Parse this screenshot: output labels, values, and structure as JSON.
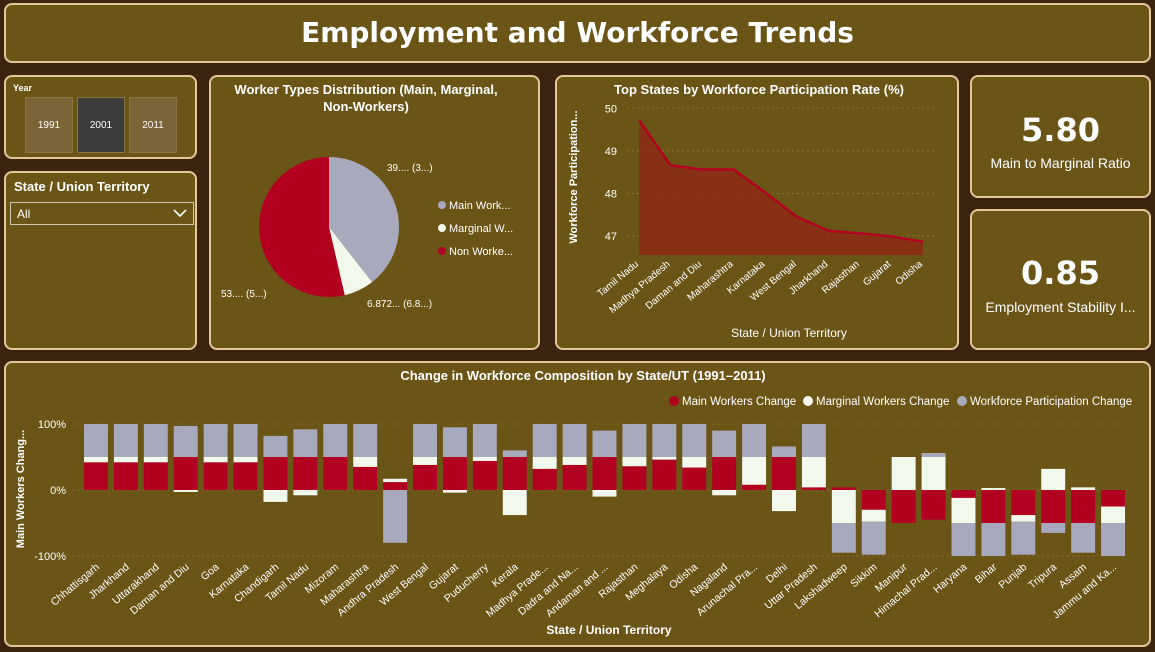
{
  "dashboard": {
    "title": "Employment and Workforce Trends"
  },
  "year_slicer": {
    "label": "Year",
    "options": [
      "1991",
      "2001",
      "2011"
    ],
    "selected": "2001"
  },
  "state_slicer": {
    "label": "State / Union Territory",
    "value": "All",
    "chevron_icon": "chevron-down-icon"
  },
  "kpis": [
    {
      "value": "5.80",
      "label": "Main to Marginal Ratio"
    },
    {
      "value": "0.85",
      "label": "Employment Stability I..."
    }
  ],
  "colors": {
    "main": "#b30021",
    "marginal": "#f3f8ec",
    "nonworkers": "#a9a9bd",
    "panel": "#6a5517",
    "border": "#e6c79a",
    "background": "#3a2410"
  },
  "chart_data": [
    {
      "type": "pie",
      "title": "Worker Types Distribution (Main, Marginal, Non-Workers)",
      "categories": [
        "Main Work...",
        "Marginal W...",
        "Non Worke..."
      ],
      "values": [
        39.0,
        6.872,
        53.0
      ],
      "data_labels": [
        "39.... (3...)",
        "6.872... (6.8...)",
        "53.... (5...)"
      ],
      "colors": [
        "#a9a9bd",
        "#f3f8ec",
        "#b30021"
      ],
      "legend": "right"
    },
    {
      "type": "area",
      "title": "Top States by Workforce Participation Rate (%)",
      "xlabel": "State / Union Territory",
      "ylabel": "Workforce Participation...",
      "categories": [
        "Tamil Nadu",
        "Madhya Pradesh",
        "Daman and Diu",
        "Maharashtra",
        "Karnataka",
        "West Bengal",
        "Jharkhand",
        "Rajasthan",
        "Gujarat",
        "Odisha"
      ],
      "values": [
        49.72,
        48.66,
        48.56,
        48.56,
        48.02,
        47.45,
        47.12,
        47.06,
        46.99,
        46.86
      ],
      "yticks": [
        "47",
        "48",
        "49",
        "50"
      ],
      "ylim": [
        46.55,
        50.1
      ],
      "color": "#b30021"
    },
    {
      "type": "bar",
      "title": "Change in Workforce Composition by State/UT (1991–2011)",
      "xlabel": "State / Union Territory",
      "ylabel": "Main Workers Chang...",
      "yticks": [
        "100%",
        "0%",
        "-100%"
      ],
      "ylim": [
        -1.0,
        1.0
      ],
      "legend": "top-right",
      "categories": [
        "Chhattisgarh",
        "Jharkhand",
        "Uttarakhand",
        "Daman and Diu",
        "Goa",
        "Karnataka",
        "Chandigarh",
        "Tamil Nadu",
        "Mizoram",
        "Maharashtra",
        "Andhra Pradesh",
        "West Bengal",
        "Gujarat",
        "Puducherry",
        "Kerala",
        "Madhya Prade...",
        "Dadra and Na...",
        "Andaman and ...",
        "Rajasthan",
        "Meghalaya",
        "Odisha",
        "Nagaland",
        "Arunachal Pra...",
        "Delhi",
        "Uttar Pradesh",
        "Lakshadweep",
        "Sikkim",
        "Manipur",
        "Himachal Prad...",
        "Haryana",
        "Bihar",
        "Punjab",
        "Tripura",
        "Assam",
        "Jammu and Ka..."
      ],
      "series": [
        {
          "name": "Main Workers Change",
          "color": "#b30021",
          "values": [
            0.42,
            0.42,
            0.42,
            0.5,
            0.42,
            0.42,
            0.5,
            0.5,
            0.5,
            0.35,
            0.12,
            0.38,
            0.5,
            0.44,
            0.5,
            0.32,
            0.38,
            0.5,
            0.36,
            0.46,
            0.34,
            0.5,
            0.08,
            0.5,
            0.04,
            0.04,
            -0.3,
            -0.5,
            -0.45,
            -0.12,
            -0.5,
            -0.38,
            -0.5,
            -0.5,
            -0.25
          ]
        },
        {
          "name": "Marginal Workers Change",
          "color": "#f3f8ec",
          "values": [
            0.08,
            0.08,
            0.08,
            -0.03,
            0.08,
            0.08,
            -0.18,
            -0.08,
            0.0,
            0.15,
            0.05,
            0.12,
            -0.04,
            0.06,
            -0.38,
            0.18,
            0.12,
            -0.1,
            0.14,
            0.04,
            0.16,
            -0.08,
            0.42,
            -0.32,
            0.46,
            -0.5,
            -0.18,
            0.5,
            0.5,
            -0.38,
            0.03,
            -0.1,
            0.32,
            0.04,
            -0.25
          ]
        },
        {
          "name": "Workforce Participation Change",
          "color": "#a9a9bd",
          "values": [
            0.5,
            0.5,
            0.5,
            0.47,
            0.5,
            0.5,
            0.32,
            0.42,
            0.5,
            0.5,
            -0.8,
            0.5,
            0.45,
            0.5,
            0.1,
            0.5,
            0.5,
            0.4,
            0.5,
            0.5,
            0.5,
            0.4,
            0.5,
            0.16,
            0.5,
            -0.45,
            -0.5,
            0.0,
            0.06,
            -0.5,
            -0.5,
            -0.5,
            -0.15,
            -0.45,
            -0.5
          ]
        }
      ]
    }
  ]
}
